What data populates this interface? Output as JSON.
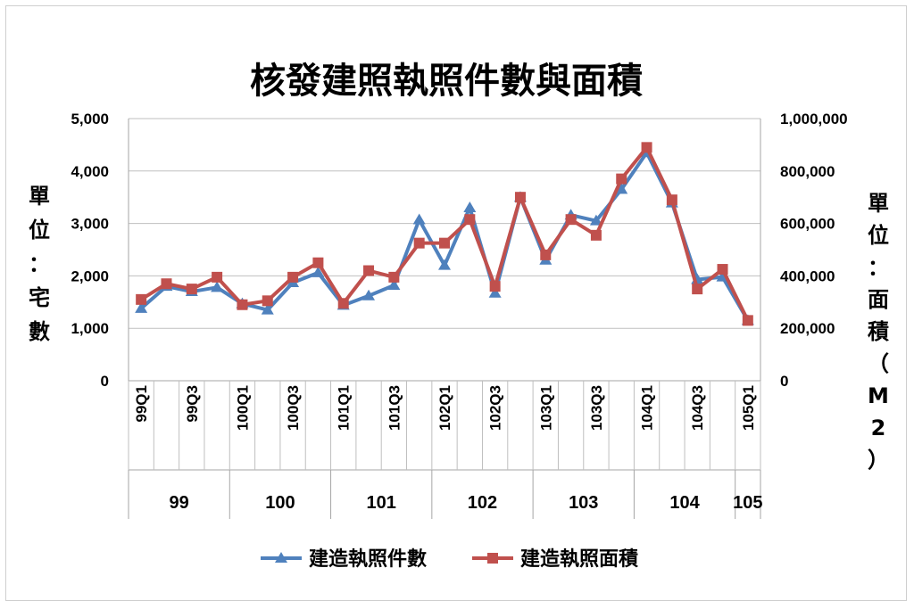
{
  "chart_data": {
    "type": "line",
    "title": "核發建照執照件數與面積",
    "left_axis_label_chars": [
      "單",
      "位",
      "：",
      "宅",
      "數"
    ],
    "right_axis_label_chars": [
      "單",
      "位",
      "：",
      "面",
      "積",
      "（",
      "M",
      "2",
      "）"
    ],
    "left_ylim": [
      0,
      5000
    ],
    "right_ylim": [
      0,
      1000000
    ],
    "left_ticks": [
      "0",
      "1,000",
      "2,000",
      "3,000",
      "4,000",
      "5,000"
    ],
    "right_ticks": [
      "0",
      "200,000",
      "400,000",
      "600,000",
      "800,000",
      "1,000,000"
    ],
    "x_tick_labels": [
      "99Q1",
      "99Q3",
      "100Q1",
      "100Q3",
      "101Q1",
      "101Q3",
      "102Q1",
      "102Q3",
      "103Q1",
      "103Q3",
      "104Q1",
      "104Q3",
      "105Q1"
    ],
    "years": [
      "99",
      "100",
      "101",
      "102",
      "103",
      "104",
      "105"
    ],
    "categories": [
      "99Q1",
      "99Q2",
      "99Q3",
      "99Q4",
      "100Q1",
      "100Q2",
      "100Q3",
      "100Q4",
      "101Q1",
      "101Q2",
      "101Q3",
      "101Q4",
      "102Q1",
      "102Q2",
      "102Q3",
      "102Q4",
      "103Q1",
      "103Q2",
      "103Q3",
      "103Q4",
      "104Q1",
      "104Q2",
      "104Q3",
      "104Q4",
      "105Q1"
    ],
    "grid": "horizontal",
    "legend_position": "bottom",
    "series": [
      {
        "name": "建造執照件數",
        "axis": "left",
        "color": "#4f81bd",
        "marker": "triangle",
        "values": [
          1380,
          1800,
          1700,
          1780,
          1470,
          1350,
          1870,
          2060,
          1440,
          1620,
          1820,
          3070,
          2200,
          3300,
          1670,
          3500,
          2300,
          3160,
          3050,
          3650,
          4350,
          3390,
          1930,
          1980,
          1150
        ]
      },
      {
        "name": "建造執照面積",
        "axis": "right",
        "color": "#c0504d",
        "marker": "square",
        "values": [
          310000,
          370000,
          350000,
          395000,
          290000,
          305000,
          395000,
          450000,
          295000,
          420000,
          395000,
          525000,
          525000,
          615000,
          360000,
          700000,
          480000,
          615000,
          555000,
          770000,
          890000,
          690000,
          350000,
          425000,
          230000
        ]
      }
    ]
  }
}
